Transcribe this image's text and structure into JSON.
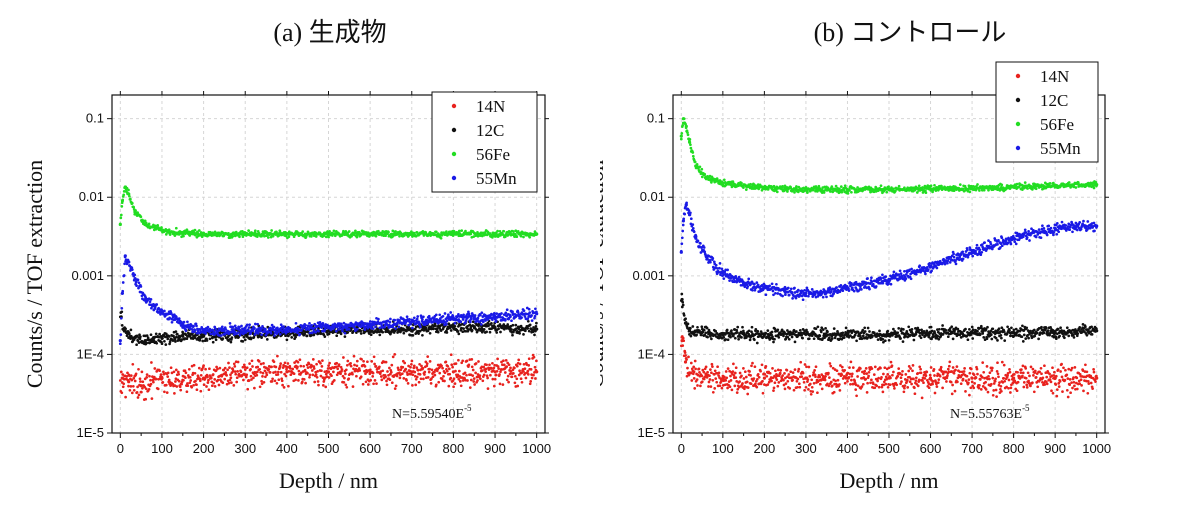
{
  "chart_data": [
    {
      "type": "scatter",
      "title": "(a) 生成物",
      "xlabel": "Depth / nm",
      "ylabel": "Counts/s / TOF extraction",
      "yscale": "log",
      "xlim": [
        -20,
        1020
      ],
      "ylim": [
        1e-05,
        0.2
      ],
      "x_ticks": [
        "0",
        "100",
        "200",
        "300",
        "400",
        "500",
        "600",
        "700",
        "800",
        "900",
        "1000"
      ],
      "y_ticks": [
        {
          "label": "1E-5",
          "value": 1e-05
        },
        {
          "label": "1E-4",
          "value": 0.0001
        },
        {
          "label": "0.001",
          "value": 0.001
        },
        {
          "label": "0.01",
          "value": 0.01
        },
        {
          "label": "0.1",
          "value": 0.1
        }
      ],
      "grid": true,
      "legend_position": "top-right",
      "annotation": {
        "text": "N=5.59540E",
        "sup": "-5"
      },
      "series": [
        {
          "name": "14N",
          "color": "#e8221e",
          "points": [
            [
              5,
              5e-05
            ],
            [
              20,
              4.5e-05
            ],
            [
              50,
              4e-05
            ],
            [
              100,
              5e-05
            ],
            [
              200,
              5e-05
            ],
            [
              300,
              5.5e-05
            ],
            [
              400,
              6e-05
            ],
            [
              500,
              6e-05
            ],
            [
              600,
              6e-05
            ],
            [
              700,
              6e-05
            ],
            [
              800,
              6e-05
            ],
            [
              900,
              6e-05
            ],
            [
              1000,
              6e-05
            ]
          ]
        },
        {
          "name": "12C",
          "color": "#111111",
          "points": [
            [
              2,
              0.0003
            ],
            [
              10,
              0.0002
            ],
            [
              30,
              0.00016
            ],
            [
              60,
              0.00015
            ],
            [
              100,
              0.00016
            ],
            [
              150,
              0.00017
            ],
            [
              200,
              0.00017
            ],
            [
              300,
              0.00018
            ],
            [
              400,
              0.00019
            ],
            [
              500,
              0.0002
            ],
            [
              600,
              0.00021
            ],
            [
              700,
              0.00021
            ],
            [
              800,
              0.00022
            ],
            [
              900,
              0.00022
            ],
            [
              1000,
              0.00021
            ]
          ]
        },
        {
          "name": "56Fe",
          "color": "#22dd22",
          "points": [
            [
              0,
              0.0045
            ],
            [
              5,
              0.009
            ],
            [
              12,
              0.0135
            ],
            [
              20,
              0.011
            ],
            [
              35,
              0.0065
            ],
            [
              60,
              0.0045
            ],
            [
              100,
              0.0038
            ],
            [
              150,
              0.0035
            ],
            [
              200,
              0.0034
            ],
            [
              300,
              0.0034
            ],
            [
              400,
              0.0034
            ],
            [
              500,
              0.0034
            ],
            [
              600,
              0.0034
            ],
            [
              700,
              0.0034
            ],
            [
              800,
              0.0034
            ],
            [
              900,
              0.0034
            ],
            [
              1000,
              0.0034
            ]
          ]
        },
        {
          "name": "55Mn",
          "color": "#1a1ae6",
          "points": [
            [
              0,
              0.00015
            ],
            [
              5,
              0.0006
            ],
            [
              12,
              0.0018
            ],
            [
              20,
              0.0015
            ],
            [
              35,
              0.0009
            ],
            [
              60,
              0.0005
            ],
            [
              100,
              0.00035
            ],
            [
              150,
              0.00024
            ],
            [
              200,
              0.0002
            ],
            [
              300,
              0.0002
            ],
            [
              400,
              0.00021
            ],
            [
              500,
              0.00022
            ],
            [
              600,
              0.00024
            ],
            [
              700,
              0.00026
            ],
            [
              800,
              0.00028
            ],
            [
              900,
              0.0003
            ],
            [
              1000,
              0.00033
            ]
          ]
        }
      ]
    },
    {
      "type": "scatter",
      "title": "(b) コントロール",
      "xlabel": "Depth / nm",
      "ylabel": "Counts/s / TOF extraction",
      "yscale": "log",
      "xlim": [
        -20,
        1020
      ],
      "ylim": [
        1e-05,
        0.2
      ],
      "x_ticks": [
        "0",
        "100",
        "200",
        "300",
        "400",
        "500",
        "600",
        "700",
        "800",
        "900",
        "1000"
      ],
      "y_ticks": [
        {
          "label": "1E-5",
          "value": 1e-05
        },
        {
          "label": "1E-4",
          "value": 0.0001
        },
        {
          "label": "0.001",
          "value": 0.001
        },
        {
          "label": "0.01",
          "value": 0.01
        },
        {
          "label": "0.1",
          "value": 0.1
        }
      ],
      "grid": true,
      "legend_position": "top-right",
      "annotation": {
        "text": "N=5.55763E",
        "sup": "-5"
      },
      "series": [
        {
          "name": "14N",
          "color": "#e8221e",
          "points": [
            [
              2,
              0.00015
            ],
            [
              10,
              8e-05
            ],
            [
              30,
              6e-05
            ],
            [
              60,
              5.5e-05
            ],
            [
              100,
              5e-05
            ],
            [
              200,
              5e-05
            ],
            [
              300,
              5e-05
            ],
            [
              400,
              5e-05
            ],
            [
              500,
              5e-05
            ],
            [
              600,
              5e-05
            ],
            [
              700,
              5e-05
            ],
            [
              800,
              5e-05
            ],
            [
              900,
              5e-05
            ],
            [
              1000,
              5e-05
            ]
          ]
        },
        {
          "name": "12C",
          "color": "#111111",
          "points": [
            [
              2,
              0.0005
            ],
            [
              10,
              0.00025
            ],
            [
              20,
              0.0002
            ],
            [
              50,
              0.00019
            ],
            [
              100,
              0.00018
            ],
            [
              200,
              0.00018
            ],
            [
              300,
              0.00018
            ],
            [
              400,
              0.00018
            ],
            [
              500,
              0.00018
            ],
            [
              600,
              0.00019
            ],
            [
              700,
              0.00019
            ],
            [
              800,
              0.00019
            ],
            [
              900,
              0.00019
            ],
            [
              1000,
              0.0002
            ]
          ]
        },
        {
          "name": "56Fe",
          "color": "#22dd22",
          "points": [
            [
              0,
              0.06
            ],
            [
              5,
              0.1
            ],
            [
              12,
              0.08
            ],
            [
              20,
              0.05
            ],
            [
              35,
              0.025
            ],
            [
              60,
              0.018
            ],
            [
              100,
              0.015
            ],
            [
              200,
              0.013
            ],
            [
              300,
              0.0125
            ],
            [
              400,
              0.0125
            ],
            [
              500,
              0.0125
            ],
            [
              600,
              0.0128
            ],
            [
              700,
              0.013
            ],
            [
              800,
              0.0135
            ],
            [
              900,
              0.014
            ],
            [
              1000,
              0.0145
            ]
          ]
        },
        {
          "name": "55Mn",
          "color": "#1a1ae6",
          "points": [
            [
              0,
              0.002
            ],
            [
              5,
              0.005
            ],
            [
              12,
              0.008
            ],
            [
              20,
              0.006
            ],
            [
              35,
              0.003
            ],
            [
              60,
              0.0018
            ],
            [
              100,
              0.0011
            ],
            [
              150,
              0.0008
            ],
            [
              200,
              0.0007
            ],
            [
              250,
              0.00062
            ],
            [
              300,
              0.0006
            ],
            [
              350,
              0.00062
            ],
            [
              400,
              0.0007
            ],
            [
              500,
              0.0009
            ],
            [
              600,
              0.0013
            ],
            [
              700,
              0.002
            ],
            [
              800,
              0.003
            ],
            [
              900,
              0.004
            ],
            [
              1000,
              0.0043
            ]
          ]
        }
      ]
    }
  ]
}
